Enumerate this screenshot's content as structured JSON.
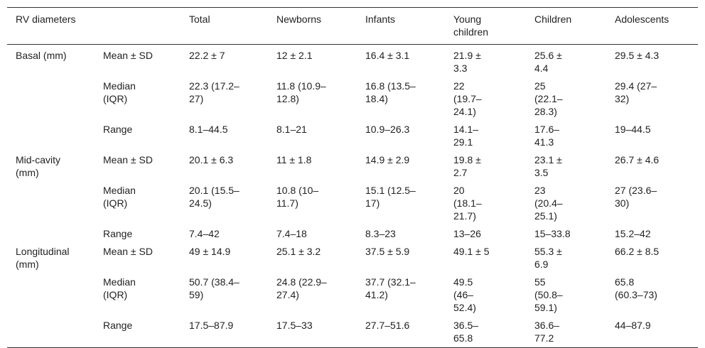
{
  "table": {
    "header": [
      "RV diameters",
      "Total",
      "Newborns",
      "Infants",
      "Young children",
      "Children",
      "Adolescents"
    ],
    "groups": [
      {
        "label": "Basal (mm)",
        "rows": [
          {
            "stat": "Mean ± SD",
            "values": [
              "22.2 ± 7",
              "12 ± 2.1",
              "16.4 ± 3.1",
              "21.9 ± 3.3",
              "25.6 ± 4.4",
              "29.5 ± 4.3"
            ]
          },
          {
            "stat": "Median (IQR)",
            "values": [
              "22.3 (17.2–27)",
              "11.8 (10.9–12.8)",
              "16.8 (13.5–18.4)",
              "22 (19.7–24.1)",
              "25 (22.1–28.3)",
              "29.4 (27–32)"
            ]
          },
          {
            "stat": "Range",
            "values": [
              "8.1–44.5",
              "8.1–21",
              "10.9–26.3",
              "14.1–29.1",
              "17.6–41.3",
              "19–44.5"
            ]
          }
        ]
      },
      {
        "label": "Mid-cavity (mm)",
        "rows": [
          {
            "stat": "Mean ± SD",
            "values": [
              "20.1 ± 6.3",
              "11 ± 1.8",
              "14.9 ± 2.9",
              "19.8 ± 2.7",
              "23.1 ± 3.5",
              "26.7 ± 4.6"
            ]
          },
          {
            "stat": "Median (IQR)",
            "values": [
              "20.1 (15.5–24.5)",
              "10.8 (10–11.7)",
              "15.1 (12.5–17)",
              "20 (18.1–21.7)",
              "23 (20.4–25.1)",
              "27 (23.6–30)"
            ]
          },
          {
            "stat": "Range",
            "values": [
              "7.4–42",
              "7.4–18",
              "8.3–23",
              "13–26",
              "15–33.8",
              "15.2–42"
            ]
          }
        ]
      },
      {
        "label": "Longitudinal (mm)",
        "rows": [
          {
            "stat": "Mean ± SD",
            "values": [
              "49 ± 14.9",
              "25.1 ± 3.2",
              "37.5 ± 5.9",
              "49.1 ± 5",
              "55.3 ± 6.9",
              "66.2 ± 8.5"
            ]
          },
          {
            "stat": "Median (IQR)",
            "values": [
              "50.7 (38.4–59)",
              "24.8 (22.9–27.4)",
              "37.7 (32.1–41.2)",
              "49.5 (46–52.4)",
              "55 (50.8–59.1)",
              "65.8 (60.3–73)"
            ]
          },
          {
            "stat": "Range",
            "values": [
              "17.5–87.9",
              "17.5–33",
              "27.7–51.6",
              "36.5–65.8",
              "36.6–77.2",
              "44–87.9"
            ]
          }
        ]
      }
    ]
  }
}
